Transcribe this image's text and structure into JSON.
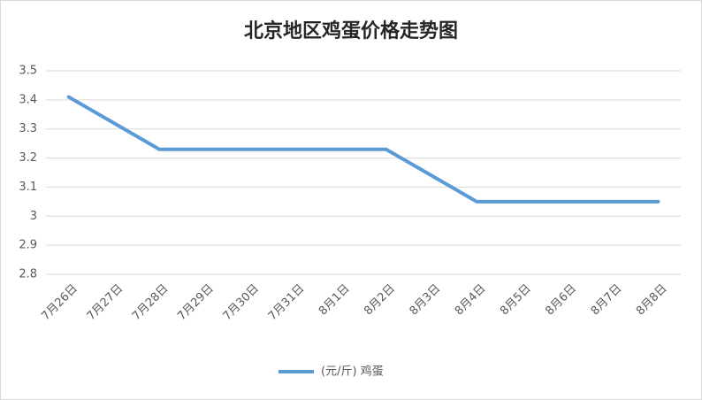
{
  "chart_data": {
    "type": "line",
    "title": "北京地区鸡蛋价格走势图",
    "categories": [
      "7月26日",
      "7月27日",
      "7月28日",
      "7月29日",
      "7月30日",
      "7月31日",
      "8月1日",
      "8月2日",
      "8月3日",
      "8月4日",
      "8月5日",
      "8月6日",
      "8月7日",
      "8月8日"
    ],
    "series": [
      {
        "name": "(元/斤) 鸡蛋",
        "color": "#5b9bd5",
        "values": [
          3.41,
          3.32,
          3.23,
          3.23,
          3.23,
          3.23,
          3.23,
          3.23,
          3.14,
          3.05,
          3.05,
          3.05,
          3.05,
          3.05
        ]
      }
    ],
    "ylim": [
      2.8,
      3.5
    ],
    "yticks": [
      2.8,
      2.9,
      3,
      3.1,
      3.2,
      3.3,
      3.4,
      3.5
    ],
    "grid": true,
    "legend": "bottom"
  }
}
